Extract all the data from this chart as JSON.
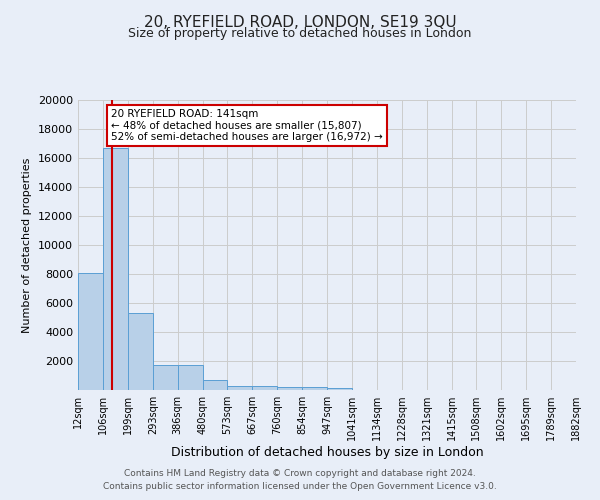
{
  "title": "20, RYEFIELD ROAD, LONDON, SE19 3QU",
  "subtitle": "Size of property relative to detached houses in London",
  "xlabel": "Distribution of detached houses by size in London",
  "ylabel": "Number of detached properties",
  "bar_color": "#b8d0e8",
  "bar_edge_color": "#5a9fd4",
  "bg_color": "#e8eef8",
  "red_line_x": 141,
  "bin_edges": [
    12,
    106,
    199,
    293,
    386,
    480,
    573,
    667,
    760,
    854,
    947,
    1041,
    1134,
    1228,
    1321,
    1415,
    1508,
    1602,
    1695,
    1789,
    1882
  ],
  "bin_labels": [
    "12sqm",
    "106sqm",
    "199sqm",
    "293sqm",
    "386sqm",
    "480sqm",
    "573sqm",
    "667sqm",
    "760sqm",
    "854sqm",
    "947sqm",
    "1041sqm",
    "1134sqm",
    "1228sqm",
    "1321sqm",
    "1415sqm",
    "1508sqm",
    "1602sqm",
    "1695sqm",
    "1789sqm",
    "1882sqm"
  ],
  "bar_heights": [
    8100,
    16700,
    5300,
    1750,
    1750,
    700,
    300,
    250,
    200,
    200,
    150,
    0,
    0,
    0,
    0,
    0,
    0,
    0,
    0,
    0
  ],
  "ylim": [
    0,
    20000
  ],
  "yticks": [
    0,
    2000,
    4000,
    6000,
    8000,
    10000,
    12000,
    14000,
    16000,
    18000,
    20000
  ],
  "annotation_line1": "20 RYEFIELD ROAD: 141sqm",
  "annotation_line2": "← 48% of detached houses are smaller (15,807)",
  "annotation_line3": "52% of semi-detached houses are larger (16,972) →",
  "footer_line1": "Contains HM Land Registry data © Crown copyright and database right 2024.",
  "footer_line2": "Contains public sector information licensed under the Open Government Licence v3.0.",
  "annotation_box_color": "#ffffff",
  "annotation_box_edge_color": "#cc0000",
  "red_line_color": "#cc0000",
  "grid_color": "#cccccc",
  "title_fontsize": 11,
  "subtitle_fontsize": 9
}
